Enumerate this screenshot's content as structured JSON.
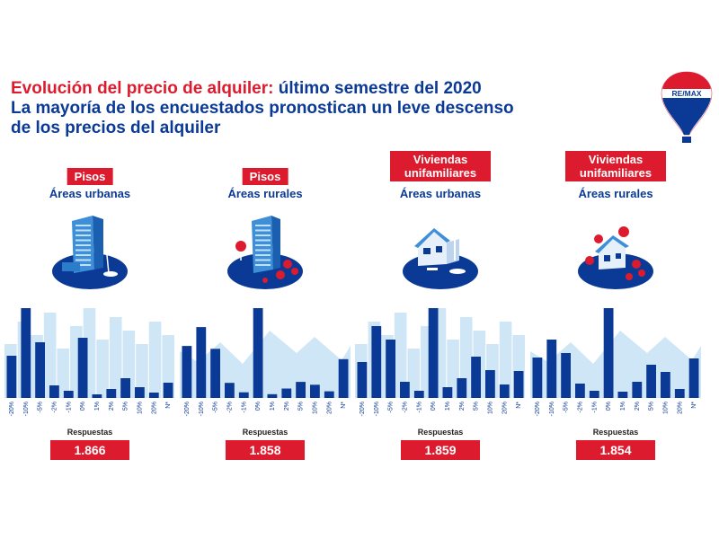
{
  "title": {
    "line1_red": "Evolución del precio de alquiler:",
    "line1_blue": " último semestre del 2020",
    "line2": "La mayoría de los encuestados pronostican un leve descenso",
    "line3": "de los precios del alquiler"
  },
  "logo": {
    "text": "RE/MAX",
    "icon": "balloon-logo-icon"
  },
  "colors": {
    "red": "#dc1c2e",
    "blue": "#0b3a96",
    "lightblue": "#cfe6f7"
  },
  "panels": [
    {
      "category": "Pisos",
      "area": "Áreas urbanas",
      "icon": "urban-apartments-icon",
      "responses_label": "Respuestas",
      "responses": "1.866"
    },
    {
      "category": "Pisos",
      "area": "Áreas rurales",
      "icon": "rural-apartments-icon",
      "responses_label": "Respuestas",
      "responses": "1.858"
    },
    {
      "category": "Viviendas unifamiliares",
      "area": "Áreas urbanas",
      "icon": "urban-house-icon",
      "responses_label": "Respuestas",
      "responses": "1.859"
    },
    {
      "category": "Viviendas unifamiliares",
      "area": "Áreas rurales",
      "icon": "rural-house-icon",
      "responses_label": "Respuestas",
      "responses": "1.854"
    }
  ],
  "chart_data": [
    {
      "type": "bar",
      "categories": [
        "-20%",
        "-10%",
        "-5%",
        "-2%",
        "-1%",
        "0%",
        "1%",
        "2%",
        "5%",
        "10%",
        "20%",
        "N*"
      ],
      "values": [
        47,
        100,
        62,
        14,
        8,
        67,
        4,
        10,
        22,
        12,
        6,
        17
      ],
      "xlabel": "",
      "ylabel": ""
    },
    {
      "type": "bar",
      "categories": [
        "-20%",
        "-10%",
        "-5%",
        "-2%",
        "-1%",
        "0%",
        "1%",
        "2%",
        "5%",
        "10%",
        "20%",
        "N*"
      ],
      "values": [
        55,
        75,
        52,
        16,
        6,
        95,
        4,
        10,
        17,
        14,
        7,
        41
      ]
    },
    {
      "type": "bar",
      "categories": [
        "-20%",
        "-10%",
        "-5%",
        "-2%",
        "-1%",
        "0%",
        "1%",
        "2%",
        "5%",
        "10%",
        "20%",
        "N*"
      ],
      "values": [
        40,
        80,
        65,
        18,
        8,
        100,
        12,
        22,
        46,
        31,
        15,
        30
      ]
    },
    {
      "type": "bar",
      "categories": [
        "-20%",
        "-10%",
        "-5%",
        "-2%",
        "-1%",
        "0%",
        "1%",
        "2%",
        "5%",
        "10%",
        "20%",
        "N*"
      ],
      "values": [
        45,
        65,
        50,
        16,
        8,
        100,
        7,
        18,
        37,
        29,
        10,
        44
      ]
    }
  ]
}
